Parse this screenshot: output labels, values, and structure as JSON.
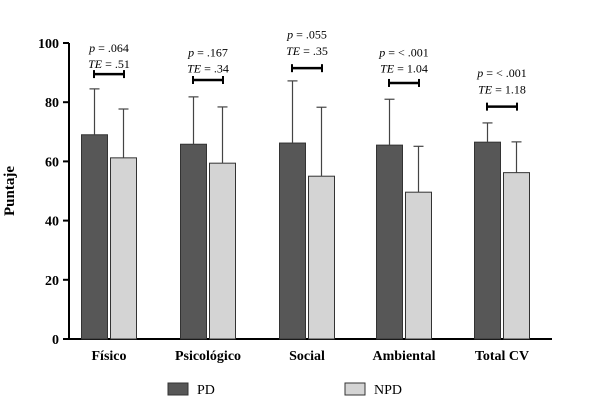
{
  "chart_data": {
    "type": "bar",
    "ylabel": "Puntaje",
    "ylim": [
      0,
      100
    ],
    "yticks": [
      0,
      20,
      40,
      60,
      80,
      100
    ],
    "categories": [
      "Físico",
      "Psicológico",
      "Social",
      "Ambiental",
      "Total CV"
    ],
    "series": [
      {
        "name": "PD",
        "color": "#575757",
        "values": [
          69.0,
          65.8,
          66.2,
          65.5,
          66.5
        ],
        "error": [
          15.5,
          16.0,
          21.0,
          15.5,
          6.5
        ]
      },
      {
        "name": "NPD",
        "color": "#d4d4d4",
        "values": [
          61.2,
          59.4,
          55.0,
          49.6,
          56.2
        ],
        "error": [
          16.5,
          19.0,
          23.3,
          15.5,
          10.4
        ]
      }
    ],
    "annotations": [
      {
        "p_label": "p",
        "p_value": " = .064",
        "te_label": "TE",
        "te_value": " = .51"
      },
      {
        "p_label": "p",
        "p_value": " = .167",
        "te_label": "TE",
        "te_value": " = .34"
      },
      {
        "p_label": "p",
        "p_value": " = .055",
        "te_label": "TE",
        "te_value": " = .35"
      },
      {
        "p_label": "p",
        "p_value": " = < .001",
        "te_label": "TE",
        "te_value": " = 1.04"
      },
      {
        "p_label": "p",
        "p_value": " = < .001",
        "te_label": "TE",
        "te_value": " = 1.18"
      }
    ],
    "annotation_levels": [
      {
        "p_at": 97,
        "te_at": 91.5,
        "bracket_at": 89.5
      },
      {
        "p_at": 95.5,
        "te_at": 90,
        "bracket_at": 87.5
      },
      {
        "p_at": 101.5,
        "te_at": 96,
        "bracket_at": 91.5
      },
      {
        "p_at": 95.5,
        "te_at": 90,
        "bracket_at": 86.5
      },
      {
        "p_at": 88.5,
        "te_at": 83,
        "bracket_at": 78.5
      }
    ],
    "legend_position": "bottom",
    "grid": false
  }
}
